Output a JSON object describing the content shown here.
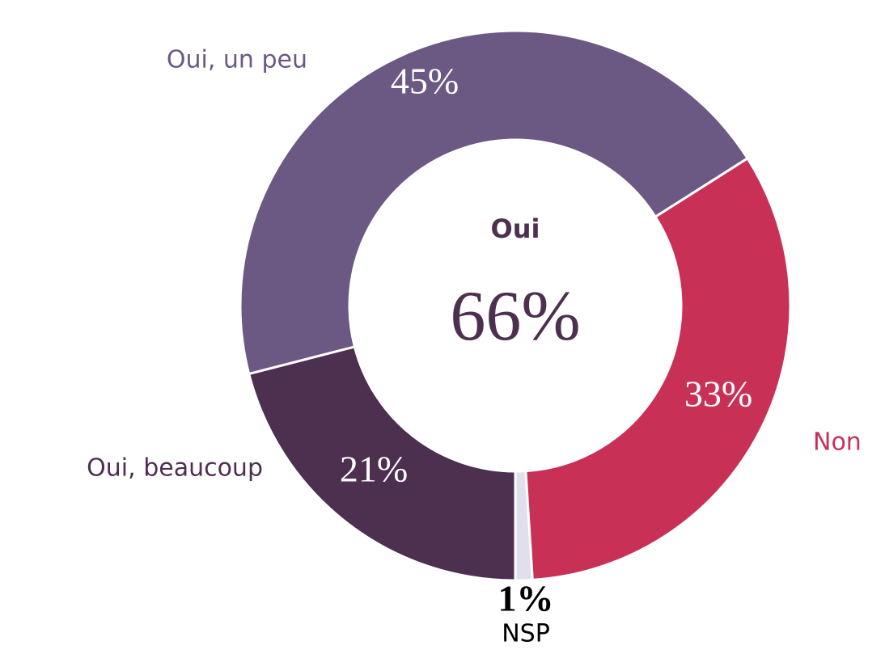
{
  "chart_data": {
    "type": "donut",
    "categories": [
      "NSP",
      "Non",
      "Oui, un peu",
      "Oui, beaucoup"
    ],
    "values": [
      1,
      33,
      45,
      21
    ],
    "value_labels": [
      "1%",
      "33%",
      "45%",
      "21%"
    ],
    "colors": [
      "#dfe0ec",
      "#c93056",
      "#6b5883",
      "#4d3050"
    ],
    "center_title": "Oui",
    "center_value": 66,
    "center_value_label": "66%"
  }
}
